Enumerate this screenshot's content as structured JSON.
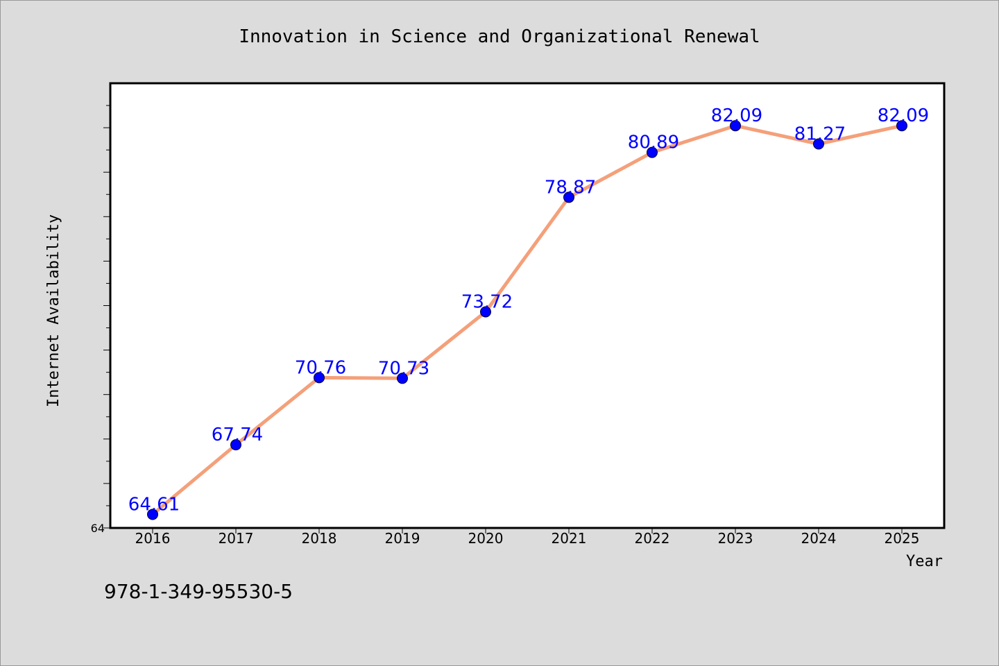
{
  "chart_data": {
    "type": "line",
    "title": "Innovation in Science and Organizational Renewal",
    "xlabel": "Year",
    "ylabel": "Internet Availability",
    "categories": [
      "2016",
      "2017",
      "2018",
      "2019",
      "2020",
      "2021",
      "2022",
      "2023",
      "2024",
      "2025"
    ],
    "series": [
      {
        "values": [
          64.61,
          67.74,
          70.76,
          70.73,
          73.72,
          78.87,
          80.89,
          82.09,
          81.27,
          82.09
        ],
        "labels": [
          "64.61",
          "67.74",
          "70.76",
          "70.73",
          "73.72",
          "78.87",
          "80.89",
          "82.09",
          "81.27",
          "82.09"
        ],
        "line_color": "#f4a07a",
        "marker_color": "#0000ff"
      }
    ],
    "ylim": [
      64,
      84
    ],
    "yticks_labeled": [
      "64"
    ],
    "grid": false,
    "legend": "none"
  },
  "footer_text": "978-1-349-95530-5",
  "colors": {
    "background": "#dcdcdc",
    "plot_background": "#ffffff",
    "line": "#f4a07a",
    "marker": "#0000ff",
    "data_label": "#0000ff"
  }
}
